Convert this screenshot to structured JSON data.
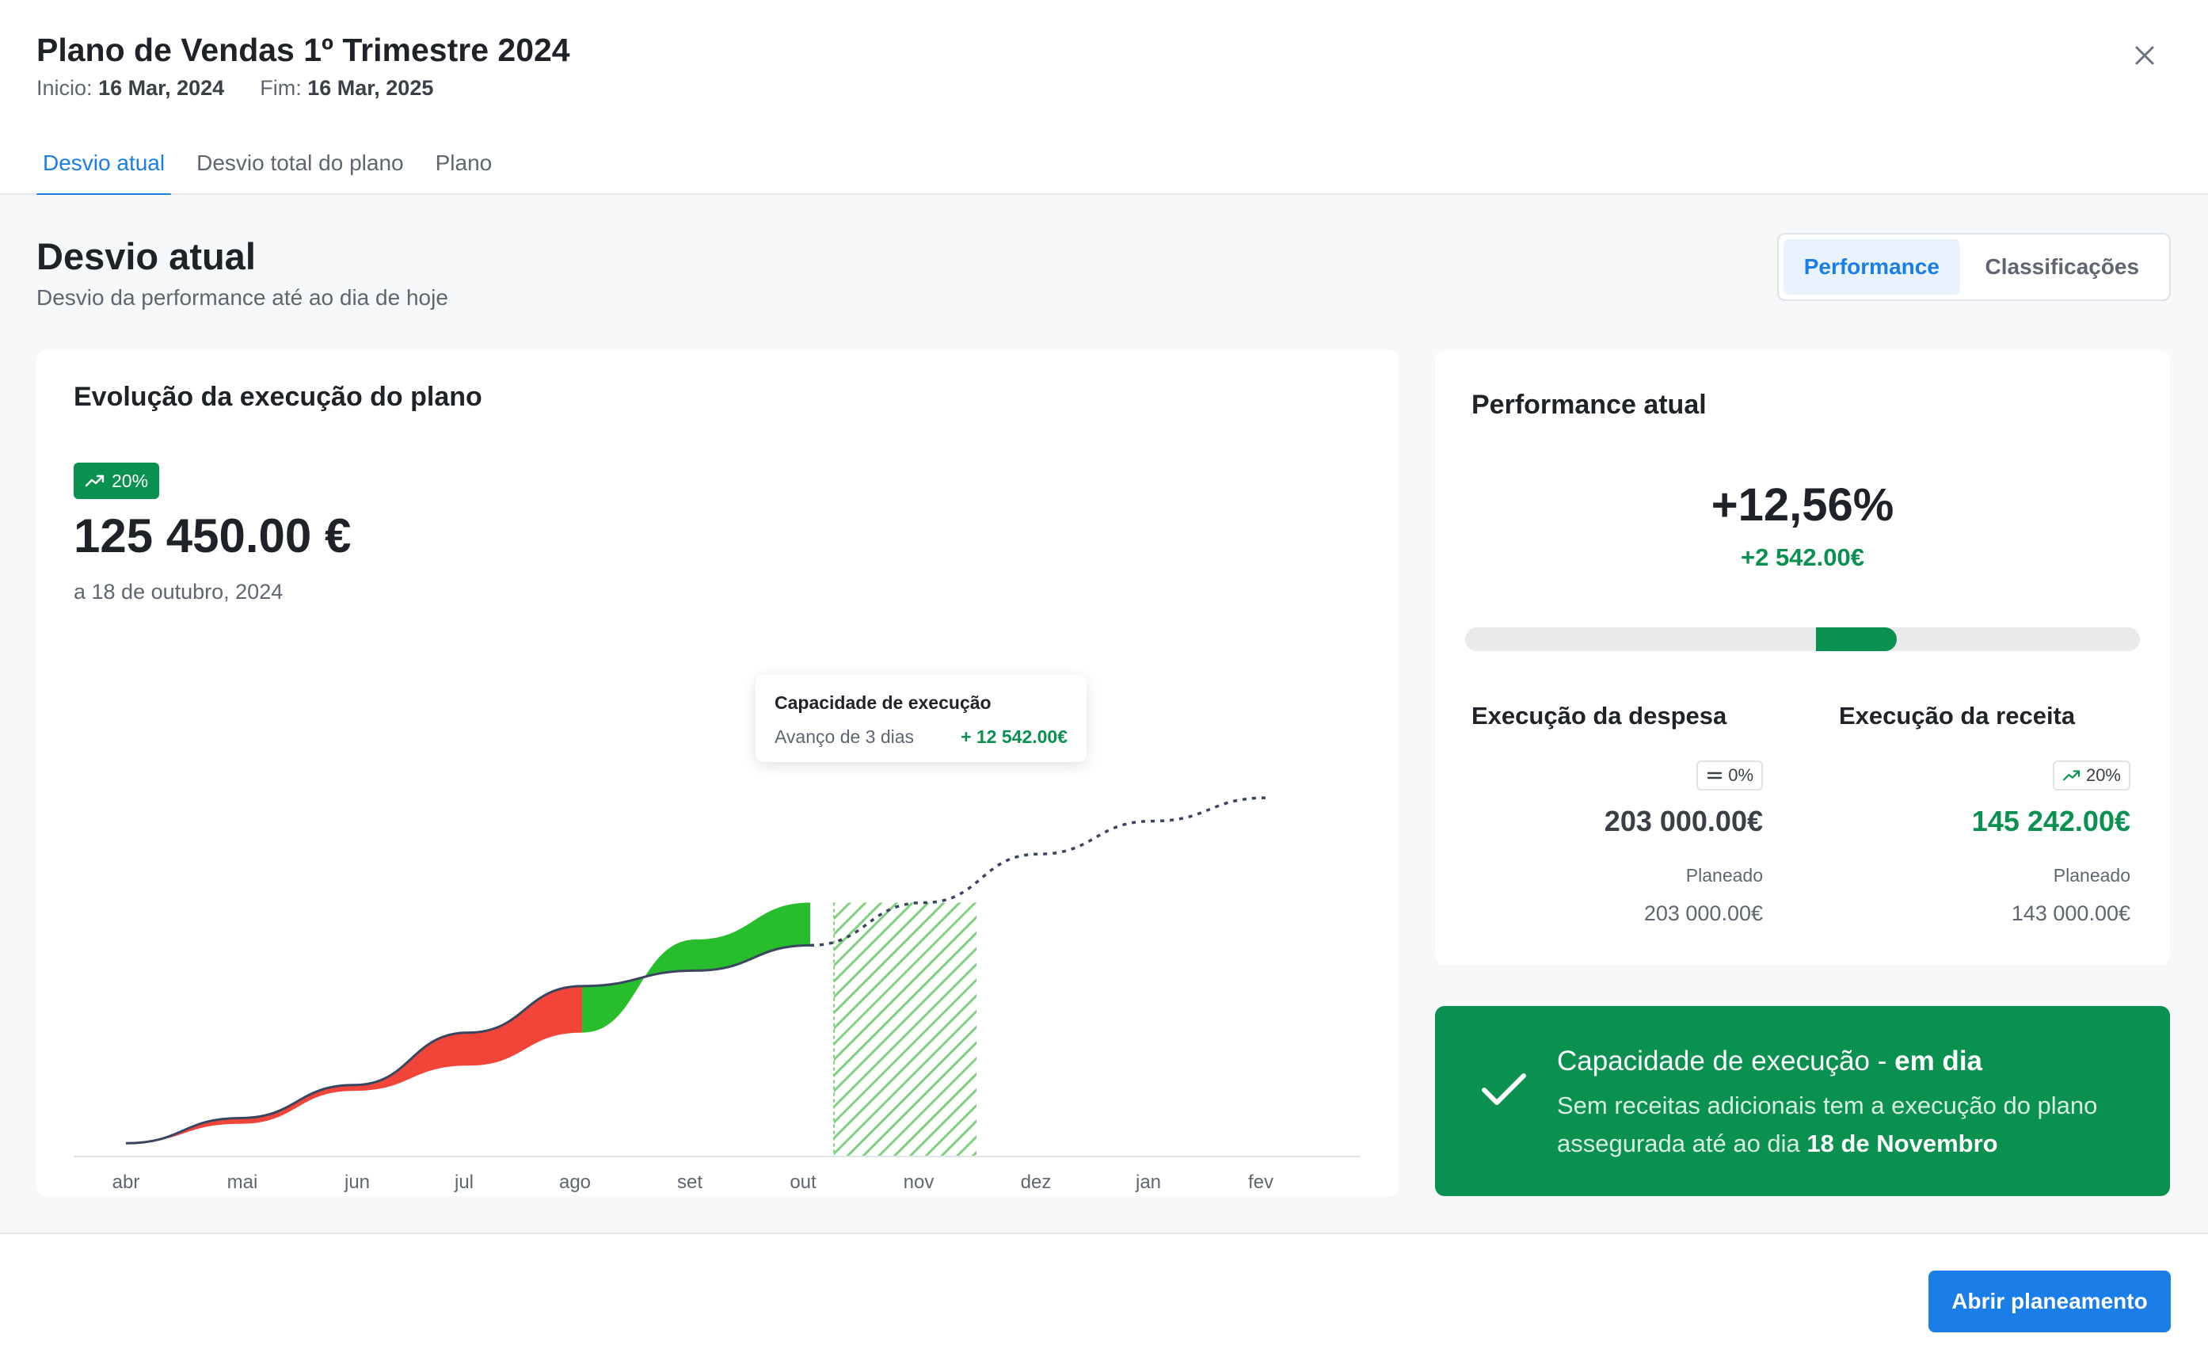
{
  "header": {
    "title": "Plano de Vendas 1º Trimestre 2024",
    "start_label": "Inicio:",
    "start_value": "16 Mar, 2024",
    "end_label": "Fim:",
    "end_value": "16 Mar, 2025",
    "close_icon": "close-icon"
  },
  "tabs": [
    {
      "label": "Desvio atual",
      "active": true
    },
    {
      "label": "Desvio total do plano",
      "active": false
    },
    {
      "label": "Plano",
      "active": false
    }
  ],
  "section": {
    "title": "Desvio atual",
    "subtitle": "Desvio da performance até ao dia de hoje"
  },
  "view_toggle": {
    "performance": "Performance",
    "classifications": "Classificações"
  },
  "evolution": {
    "title": "Evolução da execução do plano",
    "badge": "20%",
    "badge_icon": "trend-up-icon",
    "value": "125 450.00 €",
    "date": "a 18 de outubro, 2024",
    "tooltip": {
      "title": "Capacidade de execução",
      "label": "Avanço de 3 dias",
      "value": "+ 12 542.00€"
    }
  },
  "chart_data": {
    "type": "area",
    "categories": [
      "abr",
      "mai",
      "jun",
      "jul",
      "ago",
      "set",
      "out",
      "nov",
      "dez",
      "jan",
      "fev"
    ],
    "series": [
      {
        "values": [
          6,
          19,
          36,
          63,
          87,
          95,
          108,
          null,
          null,
          null,
          null
        ]
      },
      {
        "values": [
          6,
          16,
          33,
          46,
          63,
          111,
          130,
          null,
          null,
          null,
          null
        ]
      },
      {
        "values": [
          null,
          null,
          null,
          null,
          null,
          null,
          108,
          130,
          155,
          172,
          184
        ]
      }
    ],
    "highlight_range": [
      "out",
      "nov"
    ],
    "colors": {
      "above": "#27bd2c",
      "below": "#f2453a",
      "line": "#3a4660",
      "hatch": "#7fd07f"
    },
    "ylim": [
      0,
      200
    ],
    "grid": false
  },
  "performance": {
    "title": "Performance atual",
    "value": "+12,56%",
    "delta": "+2 542.00€",
    "progress_start": 0.52,
    "progress_end": 0.64,
    "expense": {
      "title": "Execução da despesa",
      "chip": "0%",
      "chip_icon": "equals-icon",
      "amount": "203 000.00€",
      "planned_label": "Planeado",
      "planned_value": "203 000.00€"
    },
    "revenue": {
      "title": "Execução da receita",
      "chip": "20%",
      "chip_icon": "trend-up-icon",
      "amount": "145 242.00€",
      "planned_label": "Planeado",
      "planned_value": "143 000.00€"
    }
  },
  "alert": {
    "icon": "check-icon",
    "title_main": "Capacidade de execução - ",
    "title_status": "em dia",
    "body_main": "Sem receitas adicionais tem a execução do plano assegurada até ao dia ",
    "body_date": "18 de Novembro"
  },
  "footer": {
    "primary_button": "Abrir planeamento"
  },
  "colors": {
    "accent": "#1a7ee6",
    "success": "#0a9150",
    "danger": "#f2453a"
  }
}
